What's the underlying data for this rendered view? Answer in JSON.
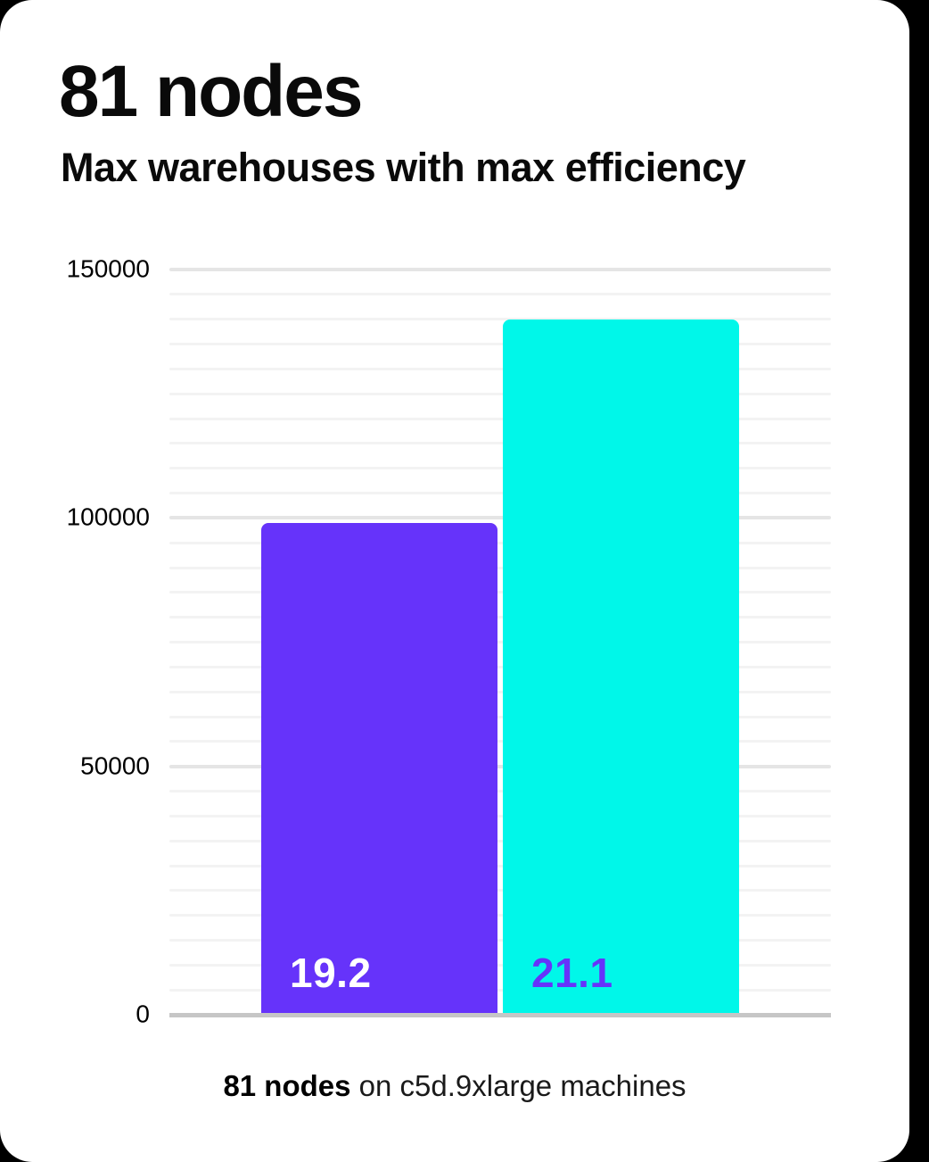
{
  "chart_data": {
    "type": "bar",
    "title": "81 nodes",
    "subtitle": "Max warehouses with max efficiency",
    "caption": {
      "bold": "81 nodes",
      "rest": " on c5d.9xlarge machines"
    },
    "ylim": [
      0,
      150000
    ],
    "yticks": [
      0,
      50000,
      100000,
      150000
    ],
    "ytick_labels": [
      "0",
      "50000",
      "100000",
      "150000"
    ],
    "minor_gridline_step": 5000,
    "major_gridline_step": 50000,
    "grid": "horizontal",
    "legend": "none",
    "xlabel": "",
    "ylabel": "",
    "bars": [
      {
        "name": "bar-purple",
        "value": 99000,
        "data_label": "19.2",
        "color": "#6633fa",
        "label_color": "#ffffff"
      },
      {
        "name": "bar-cyan",
        "value": 140000,
        "data_label": "21.1",
        "color": "#00f7e9",
        "label_color": "#6633fa"
      }
    ],
    "colors": {
      "background": "#ffffff",
      "page_background": "#000000",
      "axis_line": "#c6c6c6",
      "major_gridline": "#e5e5e5",
      "minor_gridline": "#f3f3f3",
      "text": "#000000"
    }
  }
}
